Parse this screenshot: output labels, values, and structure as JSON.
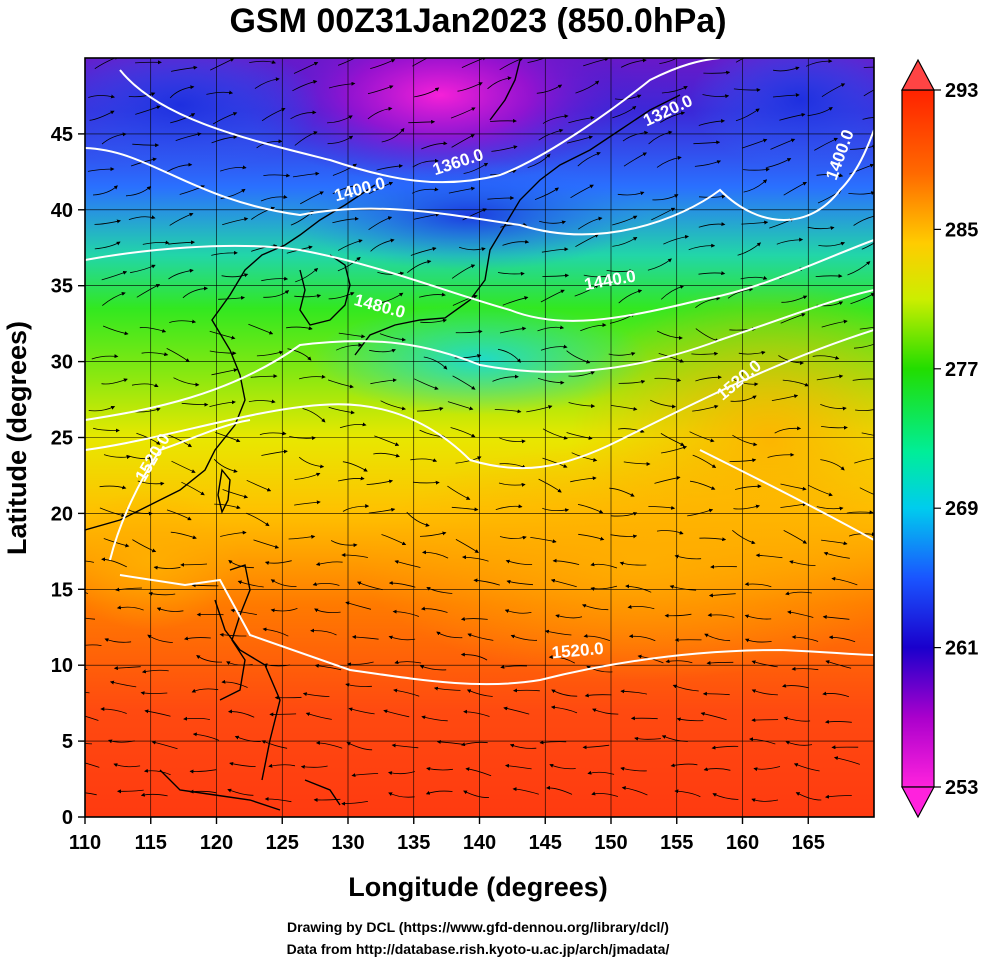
{
  "title": "GSM 00Z31Jan2023 (850.0hPa)",
  "x_axis": {
    "label": "Longitude (degrees)",
    "range": [
      110,
      170
    ],
    "ticks": [
      "110",
      "115",
      "120",
      "125",
      "130",
      "135",
      "140",
      "145",
      "150",
      "155",
      "160",
      "165"
    ]
  },
  "y_axis": {
    "label": "Latitude  (degrees)",
    "range": [
      0,
      50
    ],
    "ticks": [
      "0",
      "5",
      "10",
      "15",
      "20",
      "25",
      "30",
      "35",
      "40",
      "45"
    ]
  },
  "colorbar": {
    "min": 253,
    "max": 293,
    "labels": [
      "253",
      "261",
      "269",
      "277",
      "285",
      "293"
    ],
    "colors": [
      "#ff22dd",
      "#9900cc",
      "#1a1acc",
      "#1a66ff",
      "#00ddee",
      "#00ff99",
      "#22ee00",
      "#ccee00",
      "#ffcc00",
      "#ff6a00",
      "#ff2200"
    ]
  },
  "contours": [
    {
      "value": "1320.0",
      "lon": 154.5,
      "lat": 46.2
    },
    {
      "value": "1360.0",
      "lon": 138.5,
      "lat": 42.8
    },
    {
      "value": "1400.0",
      "lon": 131.0,
      "lat": 41.0
    },
    {
      "value": "1400.0",
      "lon": 167.8,
      "lat": 43.5
    },
    {
      "value": "1440.0",
      "lon": 150.0,
      "lat": 35.0
    },
    {
      "value": "1480.0",
      "lon": 132.3,
      "lat": 33.3
    },
    {
      "value": "1520.0",
      "lon": 147.5,
      "lat": 10.6
    },
    {
      "value": "1520.0",
      "lon": 160.0,
      "lat": 28.5
    },
    {
      "value": "1520.0",
      "lon": 115.5,
      "lat": 23.5
    }
  ],
  "credits": [
    "Drawing by DCL (https://www.gfd-dennou.org/library/dcl/)",
    "Data from http://database.rish.kyoto-u.ac.jp/arch/jmadata/"
  ],
  "chart_data": {
    "type": "heatmap",
    "variable": "temperature",
    "level": "850.0hPa",
    "time": "00Z31Jan2023",
    "lon_range": [
      110,
      170
    ],
    "lat_range": [
      0,
      50
    ],
    "color_range": [
      253,
      293
    ],
    "contour_levels": [
      1320,
      1360,
      1400,
      1440,
      1480,
      1520
    ],
    "grid": true
  }
}
